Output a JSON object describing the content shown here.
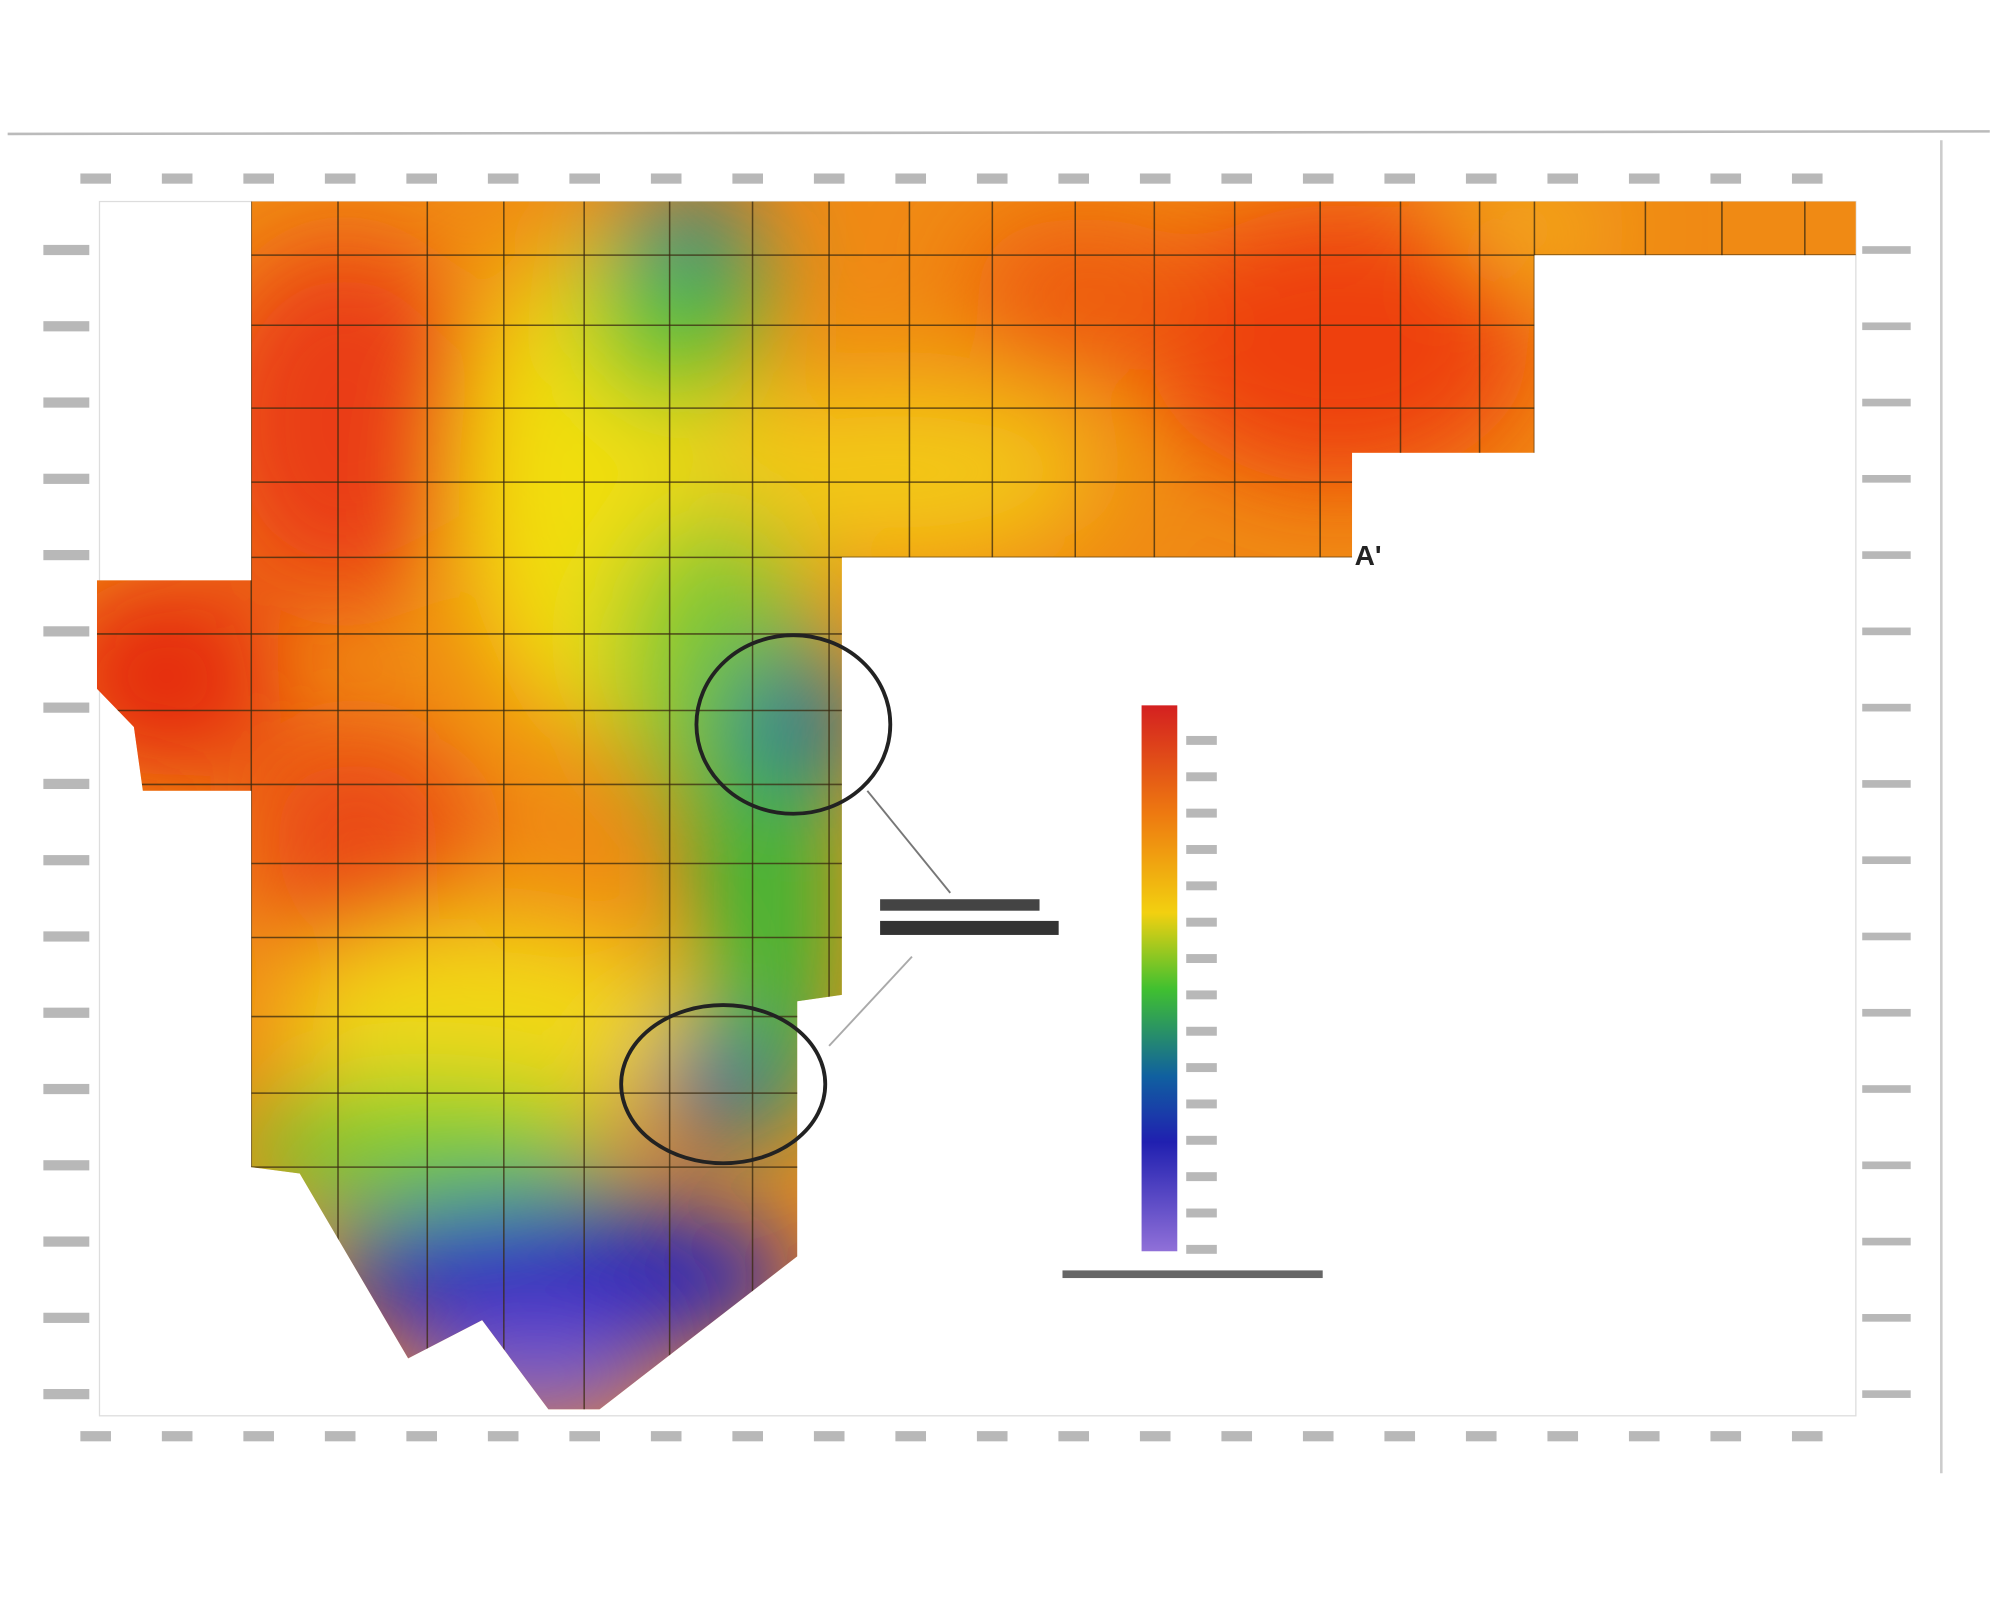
{
  "map": {
    "section_marker": "A'"
  }
}
